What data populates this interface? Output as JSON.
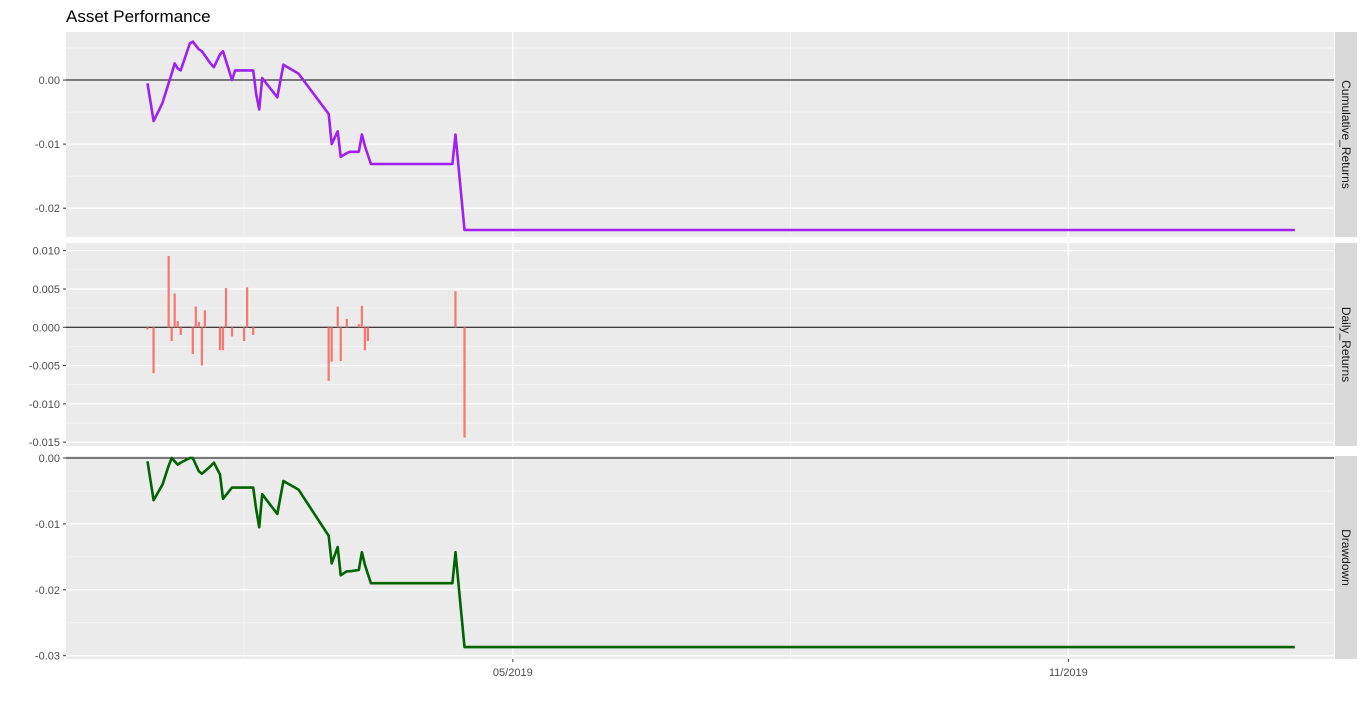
{
  "chart_data": {
    "type": "line",
    "title": "Asset Performance",
    "x_axis": {
      "tick_labels": [
        "05/2019",
        "11/2019"
      ],
      "tick_dates": [
        "2019-05-01",
        "2019-11-01"
      ],
      "minor_gridline_dates": [
        "2019-02-01",
        "2019-08-01"
      ],
      "range": [
        "2018-12-04",
        "2020-01-28"
      ]
    },
    "panels": [
      {
        "strip_label": "Cumulative_Returns",
        "type": "line",
        "color": "#A020F0",
        "ylim": [
          -0.0245,
          0.0075
        ],
        "y_ticks": [
          0.0,
          -0.01,
          -0.02
        ],
        "y_tick_labels": [
          "0.00",
          "-0.01",
          "-0.02"
        ],
        "reference_line": 0,
        "points": [
          [
            "2018-12-31",
            -0.0005
          ],
          [
            "2019-01-02",
            -0.0064
          ],
          [
            "2019-01-04",
            -0.0045
          ],
          [
            "2019-01-05",
            -0.0035
          ],
          [
            "2019-01-07",
            -0.0005
          ],
          [
            "2019-01-08",
            0.001
          ],
          [
            "2019-01-09",
            0.0026
          ],
          [
            "2019-01-10",
            0.0018
          ],
          [
            "2019-01-11",
            0.0015
          ],
          [
            "2019-01-14",
            0.0057
          ],
          [
            "2019-01-15",
            0.006
          ],
          [
            "2019-01-17",
            0.0048
          ],
          [
            "2019-01-18",
            0.0045
          ],
          [
            "2019-01-21",
            0.0025
          ],
          [
            "2019-01-22",
            0.002
          ],
          [
            "2019-01-24",
            0.004
          ],
          [
            "2019-01-25",
            0.0045
          ],
          [
            "2019-01-28",
            0.0
          ],
          [
            "2019-01-29",
            0.0015
          ],
          [
            "2019-02-01",
            0.0015
          ],
          [
            "2019-02-04",
            0.0015
          ],
          [
            "2019-02-05",
            -0.0022
          ],
          [
            "2019-02-06",
            -0.0046
          ],
          [
            "2019-02-07",
            0.0003
          ],
          [
            "2019-02-12",
            -0.0027
          ],
          [
            "2019-02-14",
            0.0024
          ],
          [
            "2019-02-19",
            0.001
          ],
          [
            "2019-03-01",
            -0.0053
          ],
          [
            "2019-03-02",
            -0.01
          ],
          [
            "2019-03-04",
            -0.008
          ],
          [
            "2019-03-05",
            -0.012
          ],
          [
            "2019-03-07",
            -0.0114
          ],
          [
            "2019-03-08",
            -0.0112
          ],
          [
            "2019-03-11",
            -0.0112
          ],
          [
            "2019-03-12",
            -0.0085
          ],
          [
            "2019-03-13",
            -0.0103
          ],
          [
            "2019-03-15",
            -0.0131
          ],
          [
            "2019-04-11",
            -0.0131
          ],
          [
            "2019-04-12",
            -0.0085
          ],
          [
            "2019-04-15",
            -0.0234
          ],
          [
            "2020-01-15",
            -0.0234
          ]
        ]
      },
      {
        "strip_label": "Daily_Returns",
        "type": "bar",
        "color": "#F8766D",
        "ylim": [
          -0.0155,
          0.011
        ],
        "y_ticks": [
          0.01,
          0.005,
          0.0,
          -0.005,
          -0.01,
          -0.015
        ],
        "y_tick_labels": [
          "0.010",
          "0.005",
          "0.000",
          "-0.005",
          "-0.010",
          "-0.015"
        ],
        "reference_line": 0,
        "bars": [
          [
            "2018-12-31",
            -0.0003
          ],
          [
            "2019-01-02",
            -0.006
          ],
          [
            "2019-01-07",
            0.0093
          ],
          [
            "2019-01-08",
            -0.0018
          ],
          [
            "2019-01-09",
            0.0044
          ],
          [
            "2019-01-10",
            0.0008
          ],
          [
            "2019-01-11",
            -0.001
          ],
          [
            "2019-01-15",
            -0.0035
          ],
          [
            "2019-01-16",
            0.0027
          ],
          [
            "2019-01-17",
            0.0007
          ],
          [
            "2019-01-18",
            -0.005
          ],
          [
            "2019-01-19",
            0.0022
          ],
          [
            "2019-01-24",
            -0.003
          ],
          [
            "2019-01-25",
            -0.003
          ],
          [
            "2019-01-26",
            0.0051
          ],
          [
            "2019-01-28",
            -0.0012
          ],
          [
            "2019-02-01",
            -0.0018
          ],
          [
            "2019-02-02",
            0.0052
          ],
          [
            "2019-02-04",
            -0.001
          ],
          [
            "2019-03-01",
            -0.007
          ],
          [
            "2019-03-02",
            -0.0045
          ],
          [
            "2019-03-04",
            0.0027
          ],
          [
            "2019-03-05",
            -0.0044
          ],
          [
            "2019-03-07",
            0.0011
          ],
          [
            "2019-03-11",
            0.0004
          ],
          [
            "2019-03-12",
            0.0028
          ],
          [
            "2019-03-13",
            -0.003
          ],
          [
            "2019-03-14",
            -0.0018
          ],
          [
            "2019-04-12",
            0.0047
          ],
          [
            "2019-04-15",
            -0.0144
          ]
        ]
      },
      {
        "strip_label": "Drawdown",
        "type": "line",
        "color": "#006400",
        "ylim": [
          -0.0305,
          0.0003
        ],
        "y_ticks": [
          0.0,
          -0.01,
          -0.02,
          -0.03
        ],
        "y_tick_labels": [
          "0.00",
          "-0.01",
          "-0.02",
          "-0.03"
        ],
        "reference_line": 0,
        "points": [
          [
            "2018-12-31",
            -0.0005
          ],
          [
            "2019-01-02",
            -0.0064
          ],
          [
            "2019-01-04",
            -0.0048
          ],
          [
            "2019-01-05",
            -0.004
          ],
          [
            "2019-01-07",
            -0.0012
          ],
          [
            "2019-01-08",
            0.0
          ],
          [
            "2019-01-10",
            -0.001
          ],
          [
            "2019-01-11",
            -0.0007
          ],
          [
            "2019-01-14",
            0.0
          ],
          [
            "2019-01-15",
            0.0
          ],
          [
            "2019-01-17",
            -0.002
          ],
          [
            "2019-01-18",
            -0.0024
          ],
          [
            "2019-01-21",
            -0.0012
          ],
          [
            "2019-01-22",
            -0.0007
          ],
          [
            "2019-01-24",
            -0.0025
          ],
          [
            "2019-01-25",
            -0.0062
          ],
          [
            "2019-01-28",
            -0.0045
          ],
          [
            "2019-02-01",
            -0.0045
          ],
          [
            "2019-02-04",
            -0.0045
          ],
          [
            "2019-02-05",
            -0.0078
          ],
          [
            "2019-02-06",
            -0.0105
          ],
          [
            "2019-02-07",
            -0.0055
          ],
          [
            "2019-02-12",
            -0.0085
          ],
          [
            "2019-02-14",
            -0.0035
          ],
          [
            "2019-02-19",
            -0.0048
          ],
          [
            "2019-03-01",
            -0.0118
          ],
          [
            "2019-03-02",
            -0.016
          ],
          [
            "2019-03-04",
            -0.0135
          ],
          [
            "2019-03-05",
            -0.0178
          ],
          [
            "2019-03-07",
            -0.0172
          ],
          [
            "2019-03-08",
            -0.0172
          ],
          [
            "2019-03-11",
            -0.017
          ],
          [
            "2019-03-12",
            -0.0143
          ],
          [
            "2019-03-13",
            -0.0162
          ],
          [
            "2019-03-15",
            -0.019
          ],
          [
            "2019-04-11",
            -0.019
          ],
          [
            "2019-04-12",
            -0.0143
          ],
          [
            "2019-04-15",
            -0.0287
          ],
          [
            "2020-01-15",
            -0.0287
          ]
        ]
      }
    ],
    "grid": true,
    "legend": "none"
  }
}
